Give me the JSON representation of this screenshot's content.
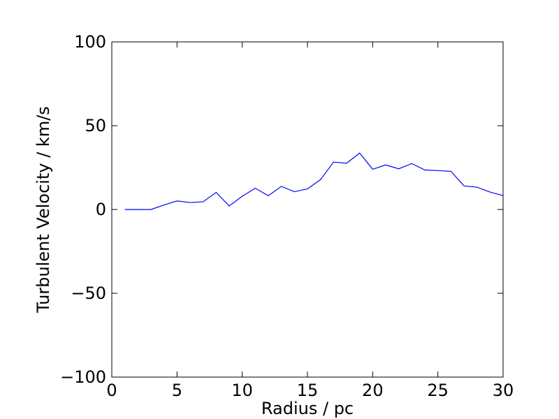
{
  "chart_data": {
    "type": "line",
    "title": "",
    "xlabel": "Radius / pc",
    "ylabel": "Turbulent Velocity / km/s",
    "xlim": [
      0,
      30
    ],
    "ylim": [
      -100,
      100
    ],
    "x_ticks": [
      0,
      5,
      10,
      15,
      20,
      25,
      30
    ],
    "y_ticks": [
      -100,
      -50,
      0,
      50,
      100
    ],
    "x_tick_labels": [
      "0",
      "5",
      "10",
      "15",
      "20",
      "25",
      "30"
    ],
    "y_tick_labels": [
      "−100",
      "−50",
      "0",
      "50",
      "100"
    ],
    "grid": false,
    "legend": "none",
    "series": [
      {
        "color": "#0000ff",
        "x": [
          1,
          2,
          3,
          4,
          5,
          6,
          7,
          8,
          9,
          10,
          11,
          12,
          13,
          14,
          15,
          16,
          17,
          18,
          19,
          20,
          21,
          22,
          23,
          24,
          25,
          26,
          27,
          28,
          29,
          30
        ],
        "y": [
          0,
          0,
          0,
          2.7,
          5.1,
          4.2,
          4.6,
          10.2,
          2.1,
          7.9,
          12.7,
          8.2,
          13.8,
          10.6,
          12.3,
          17.8,
          28.3,
          27.6,
          33.7,
          24.0,
          26.6,
          24.3,
          27.4,
          23.6,
          23.2,
          22.8,
          14.1,
          13.3,
          10.4,
          8.3
        ]
      }
    ]
  }
}
